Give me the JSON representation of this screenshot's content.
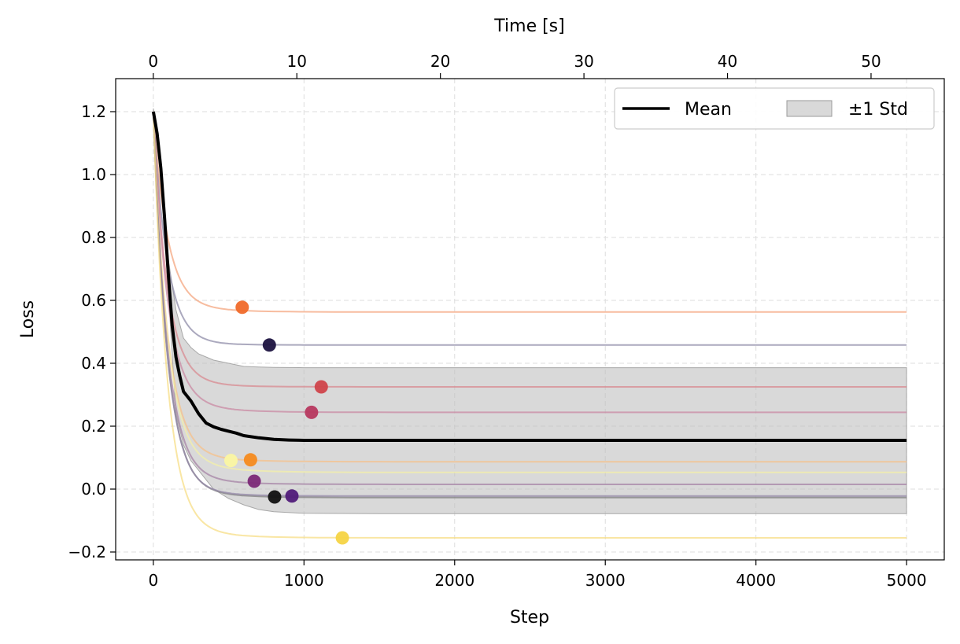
{
  "chart_data": {
    "type": "line",
    "xlabel": "Step",
    "ylabel": "Loss",
    "x2label": "Time [s]",
    "xlim": [
      -250,
      5250
    ],
    "ylim": [
      -0.225,
      1.305
    ],
    "x2lim": [
      -2.62,
      55.1
    ],
    "xticks": [
      0,
      1000,
      2000,
      3000,
      4000,
      5000
    ],
    "xtick_labels": [
      "0",
      "1000",
      "2000",
      "3000",
      "4000",
      "5000"
    ],
    "yticks": [
      -0.2,
      0.0,
      0.2,
      0.4,
      0.6,
      0.8,
      1.0,
      1.2
    ],
    "ytick_labels": [
      "−0.2",
      "0.0",
      "0.2",
      "0.4",
      "0.6",
      "0.8",
      "1.0",
      "1.2"
    ],
    "x2ticks": [
      0,
      10,
      20,
      30,
      40,
      50
    ],
    "x2tick_labels": [
      "0",
      "10",
      "20",
      "30",
      "40",
      "50"
    ],
    "grid": true,
    "legend": {
      "position": "top-right",
      "entries": [
        {
          "label": "Mean",
          "kind": "line",
          "color": "#000000"
        },
        {
          "label": "±1 Std",
          "kind": "band",
          "color": "#bfbfbf"
        }
      ]
    },
    "mean": {
      "name": "Mean",
      "color": "#000000",
      "x": [
        0,
        25,
        50,
        75,
        100,
        125,
        150,
        175,
        200,
        250,
        300,
        350,
        400,
        450,
        500,
        550,
        600,
        700,
        800,
        900,
        1000,
        1500,
        2000,
        3000,
        4000,
        5000
      ],
      "y": [
        1.2,
        1.13,
        1.02,
        0.86,
        0.68,
        0.52,
        0.42,
        0.36,
        0.31,
        0.28,
        0.24,
        0.21,
        0.198,
        0.19,
        0.184,
        0.178,
        0.17,
        0.163,
        0.158,
        0.156,
        0.155,
        0.155,
        0.155,
        0.155,
        0.155,
        0.155
      ]
    },
    "std_band": {
      "name": "±1 Std",
      "color": "#bfbfbf",
      "x": [
        0,
        50,
        100,
        150,
        200,
        250,
        300,
        400,
        500,
        600,
        700,
        800,
        1000,
        1500,
        2000,
        3000,
        5000
      ],
      "upper": [
        1.21,
        1.04,
        0.73,
        0.57,
        0.48,
        0.45,
        0.43,
        0.41,
        0.4,
        0.39,
        0.388,
        0.387,
        0.386,
        0.386,
        0.386,
        0.386,
        0.386
      ],
      "lower": [
        1.19,
        1.0,
        0.62,
        0.24,
        0.14,
        0.09,
        0.06,
        0.0,
        -0.03,
        -0.05,
        -0.065,
        -0.072,
        -0.077,
        -0.078,
        -0.078,
        -0.078,
        -0.078
      ]
    },
    "runs": [
      {
        "name": "run-1",
        "color": "#f4a57f",
        "final": 0.563,
        "plateau": 0.6,
        "marker_x": 590,
        "marker_y": 0.578,
        "marker_color": "#f06a2a"
      },
      {
        "name": "run-2",
        "color": "#8f8ca8",
        "final": 0.458,
        "plateau": 0.47,
        "marker_x": 770,
        "marker_y": 0.458,
        "marker_color": "#1c1340"
      },
      {
        "name": "run-3",
        "color": "#d88a90",
        "final": 0.325,
        "plateau": 0.35,
        "marker_x": 1115,
        "marker_y": 0.325,
        "marker_color": "#d0454b"
      },
      {
        "name": "run-4",
        "color": "#c98aa3",
        "final": 0.244,
        "plateau": 0.3,
        "marker_x": 1050,
        "marker_y": 0.244,
        "marker_color": "#b7385f"
      },
      {
        "name": "run-5",
        "color": "#f5c08a",
        "final": 0.087,
        "plateau": 0.13,
        "marker_x": 645,
        "marker_y": 0.093,
        "marker_color": "#f58b1f"
      },
      {
        "name": "run-6",
        "color": "#f3efa8",
        "final": 0.053,
        "plateau": 0.12,
        "marker_x": 515,
        "marker_y": 0.091,
        "marker_color": "#fbf7a2"
      },
      {
        "name": "run-7",
        "color": "#a583a6",
        "final": 0.015,
        "plateau": 0.06,
        "marker_x": 670,
        "marker_y": 0.025,
        "marker_color": "#7b2877"
      },
      {
        "name": "run-8",
        "color": "#7f7f7f",
        "final": -0.027,
        "plateau": 0.02,
        "marker_x": 805,
        "marker_y": -0.025,
        "marker_color": "#111111"
      },
      {
        "name": "run-9",
        "color": "#9488a8",
        "final": -0.022,
        "plateau": 0.01,
        "marker_x": 920,
        "marker_y": -0.022,
        "marker_color": "#511c7a"
      },
      {
        "name": "run-10",
        "color": "#f7dd86",
        "final": -0.155,
        "plateau": -0.1,
        "marker_x": 1255,
        "marker_y": -0.155,
        "marker_color": "#f5d445"
      }
    ]
  }
}
